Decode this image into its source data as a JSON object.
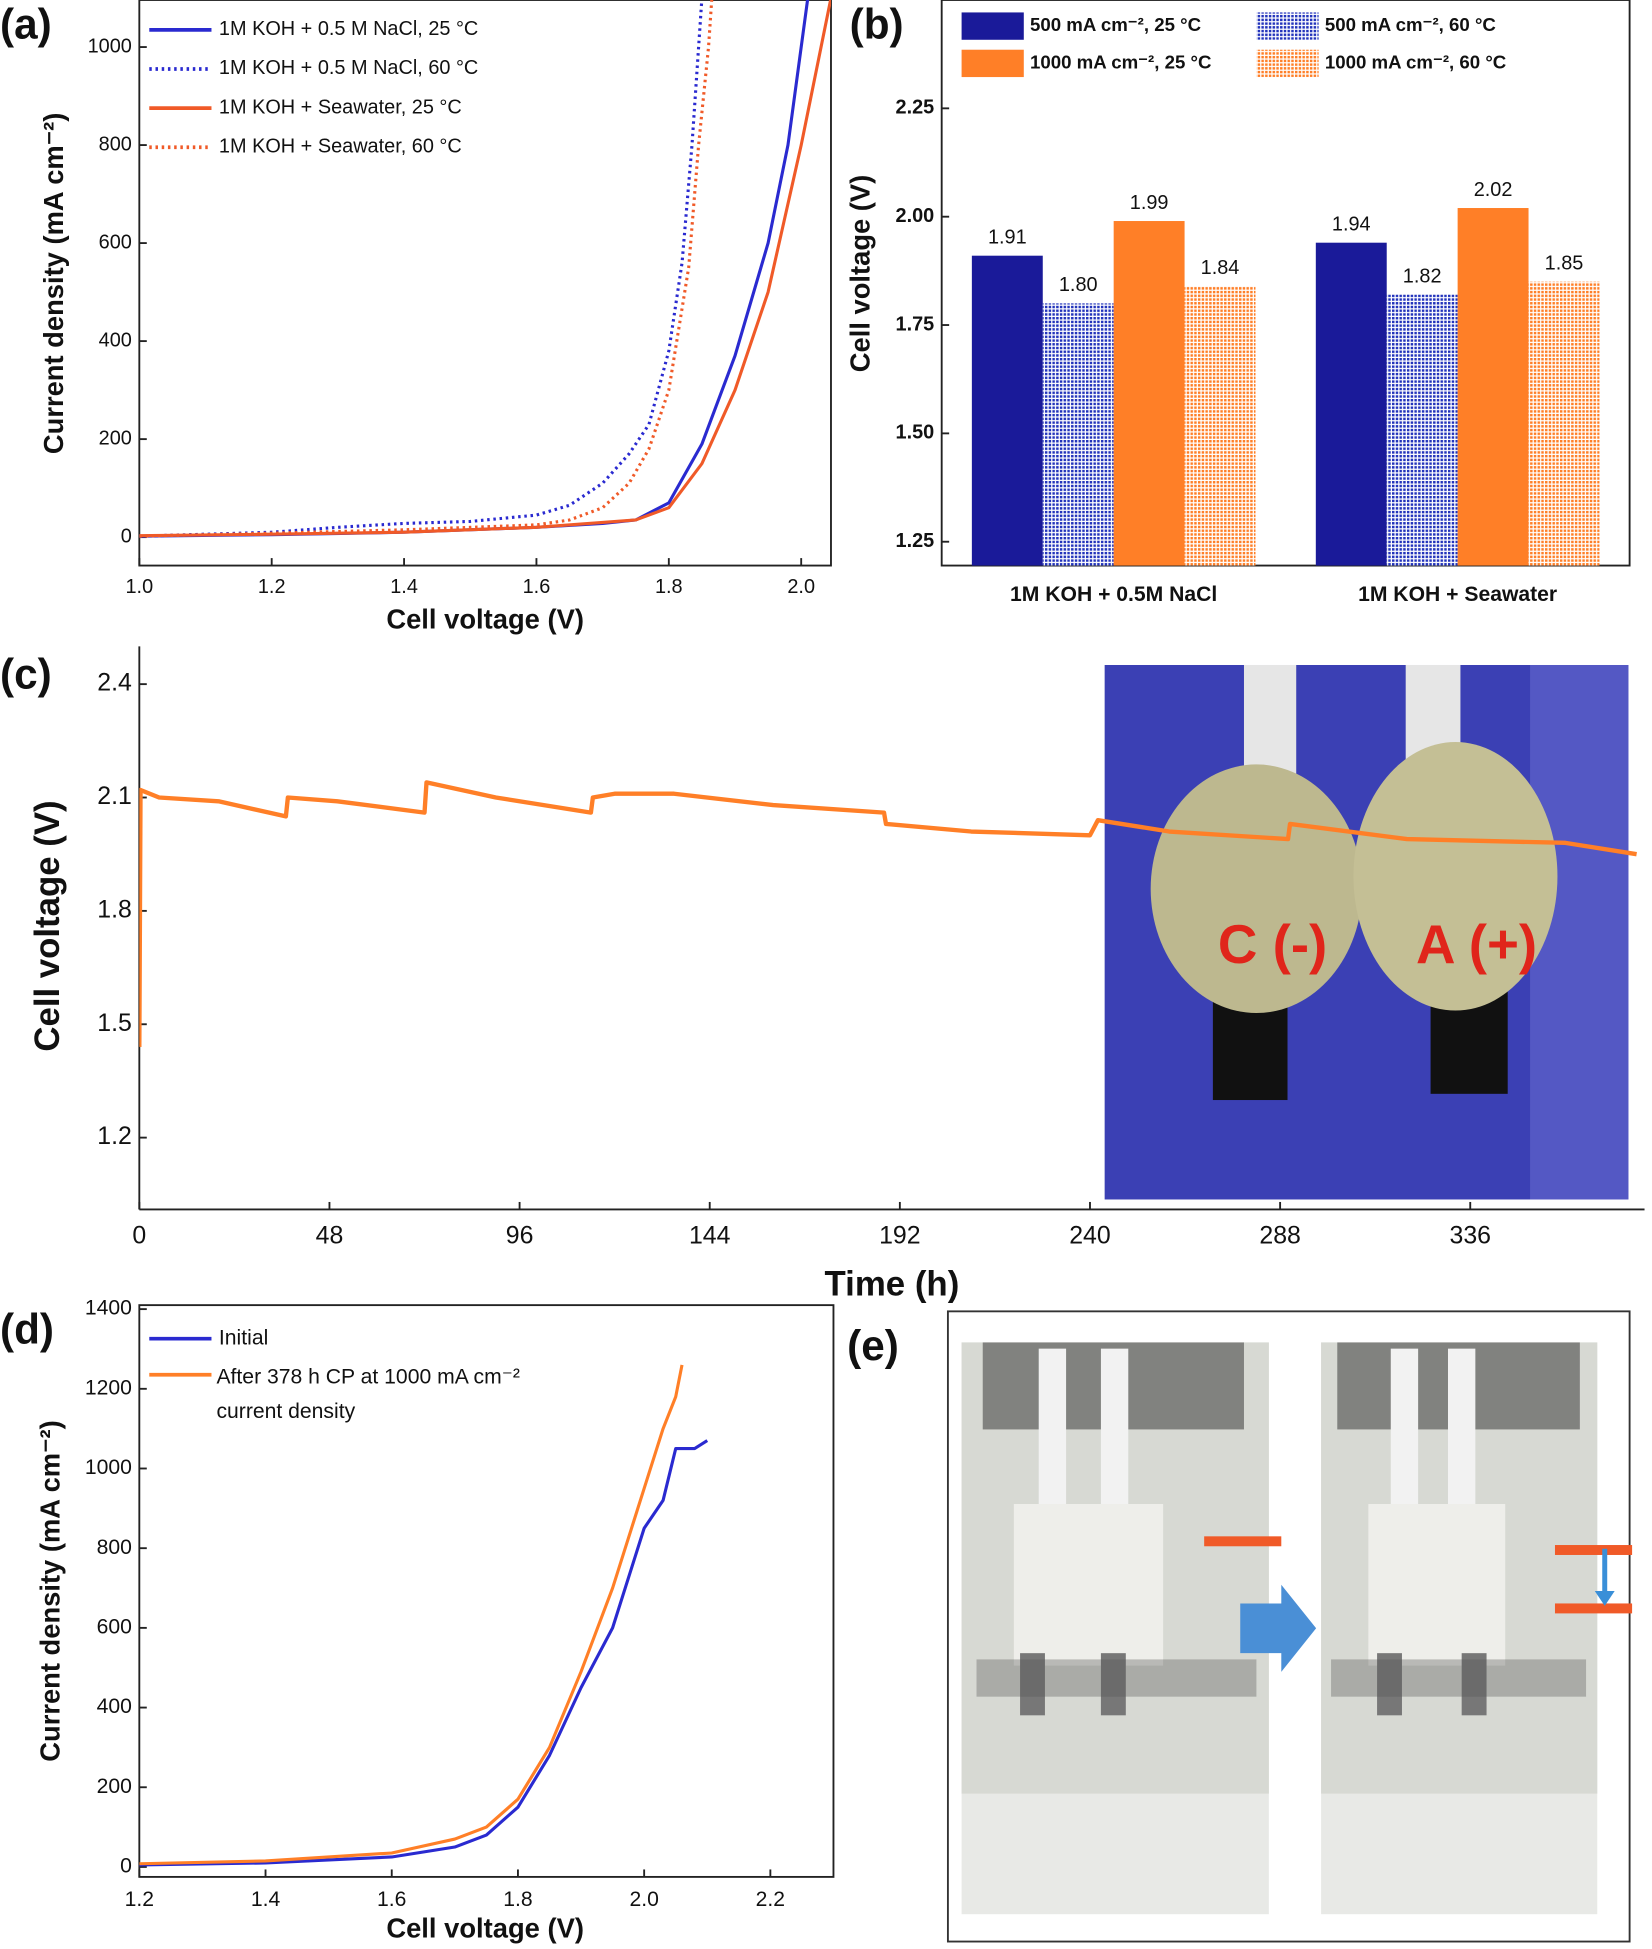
{
  "chart_data": [
    {
      "type": "line",
      "panel_label": "(a)",
      "xlabel": "Cell voltage (V)",
      "ylabel": "Current density (mA cm⁻²)",
      "xlim": [
        1.0,
        2.045
      ],
      "ylim": [
        -58,
        1096
      ],
      "xticks": [
        {
          "value": 1.0,
          "label": "1.0"
        },
        1.2,
        1.4,
        1.6,
        1.8,
        {
          "value": 2.0,
          "label": "2.0"
        }
      ],
      "yticks": [
        0,
        200,
        400,
        600,
        800,
        1000
      ],
      "legend": "upper left",
      "series": [
        {
          "name": "1M KOH + 0.5 M NaCl, 25 °C",
          "color": "#2a2ad0",
          "dash": "solid",
          "x": [
            1.0,
            1.2,
            1.4,
            1.6,
            1.7,
            1.75,
            1.8,
            1.85,
            1.9,
            1.95,
            1.98,
            2.0,
            2.01
          ],
          "values": [
            2,
            5,
            10,
            20,
            28,
            35,
            70,
            190,
            370,
            600,
            800,
            1000,
            1100
          ]
        },
        {
          "name": "1M KOH + 0.5 M NaCl, 60 °C",
          "color": "#2a2ad0",
          "dash": "dotted",
          "x": [
            1.0,
            1.2,
            1.3,
            1.4,
            1.5,
            1.6,
            1.65,
            1.7,
            1.74,
            1.77,
            1.8,
            1.82,
            1.835,
            1.845,
            1.85
          ],
          "values": [
            2,
            10,
            20,
            28,
            32,
            45,
            65,
            110,
            170,
            230,
            380,
            560,
            800,
            1000,
            1100
          ]
        },
        {
          "name": "1M KOH + Seawater, 25 °C",
          "color": "#f05a28",
          "dash": "solid",
          "x": [
            1.0,
            1.2,
            1.4,
            1.6,
            1.7,
            1.75,
            1.8,
            1.85,
            1.9,
            1.95,
            2.0,
            2.03,
            2.045
          ],
          "values": [
            3,
            6,
            10,
            20,
            30,
            35,
            60,
            150,
            300,
            500,
            800,
            1000,
            1100
          ]
        },
        {
          "name": "1M KOH + Seawater, 60 °C",
          "color": "#f05a28",
          "dash": "dotted",
          "x": [
            1.0,
            1.2,
            1.4,
            1.5,
            1.6,
            1.65,
            1.7,
            1.74,
            1.77,
            1.8,
            1.83,
            1.845,
            1.86,
            1.865
          ],
          "values": [
            2,
            8,
            15,
            20,
            25,
            35,
            60,
            110,
            180,
            300,
            550,
            800,
            1000,
            1100
          ]
        }
      ]
    },
    {
      "type": "bar",
      "panel_label": "(b)",
      "ylabel": "Cell voltage (V)",
      "categories": [
        "1M KOH + 0.5M NaCl",
        "1M KOH + Seawater"
      ],
      "ylim": [
        1.195,
        2.5
      ],
      "yticks": [
        1.25,
        {
          "value": 1.5,
          "label": "1.50"
        },
        1.75,
        {
          "value": 2.0,
          "label": "2.00"
        },
        2.25
      ],
      "legend": "top",
      "series": [
        {
          "name": "500 mA cm⁻², 25 °C",
          "color": "#1a1a99",
          "pattern": "solid",
          "values": [
            1.91,
            1.94
          ]
        },
        {
          "name": "500 mA cm⁻², 60 °C",
          "color": "#2233bb",
          "pattern": "dotted",
          "values": [
            1.8,
            1.82
          ],
          "value_labels": [
            "1.80",
            "1.82"
          ]
        },
        {
          "name": "1000 mA cm⁻², 25 °C",
          "color": "#ff7f27",
          "pattern": "solid",
          "values": [
            1.99,
            2.02
          ]
        },
        {
          "name": "1000 mA cm⁻², 60 °C",
          "color": "#ff7f27",
          "pattern": "dotted",
          "values": [
            1.84,
            1.85
          ]
        }
      ]
    },
    {
      "type": "line",
      "panel_label": "(c)",
      "xlabel": "Time (h)",
      "ylabel": "Cell voltage (V)",
      "xlim": [
        0,
        380
      ],
      "ylim": [
        1.01,
        2.5
      ],
      "xticks": [
        0,
        48,
        96,
        144,
        192,
        240,
        288,
        336
      ],
      "yticks": [
        1.2,
        1.5,
        1.8,
        2.1,
        2.4
      ],
      "inset_labels": [
        "C (-)",
        "A (+)"
      ],
      "series": [
        {
          "color": "#ff7f27",
          "dash": "solid",
          "x": [
            0,
            0.3,
            5,
            20,
            37,
            37.5,
            50,
            72,
            72.5,
            90,
            114,
            114.5,
            120,
            135,
            160,
            188,
            188.5,
            210,
            240,
            242,
            260,
            290,
            290.5,
            320,
            360,
            378
          ],
          "values": [
            1.44,
            2.12,
            2.1,
            2.09,
            2.05,
            2.1,
            2.09,
            2.06,
            2.14,
            2.1,
            2.06,
            2.1,
            2.11,
            2.11,
            2.08,
            2.06,
            2.03,
            2.01,
            2.0,
            2.04,
            2.01,
            1.99,
            2.03,
            1.99,
            1.98,
            1.95
          ]
        }
      ]
    },
    {
      "type": "line",
      "panel_label": "(d)",
      "xlabel": "Cell voltage (V)",
      "ylabel": "Current density (mA cm⁻²)",
      "xlim": [
        1.2,
        2.3
      ],
      "ylim": [
        -25,
        1410
      ],
      "xticks": [
        1.2,
        1.4,
        1.6,
        1.8,
        {
          "value": 2.0,
          "label": "2.0"
        },
        2.2
      ],
      "yticks": [
        0,
        200,
        400,
        600,
        800,
        1000,
        1200,
        1400
      ],
      "legend": "upper left",
      "series": [
        {
          "name": "Initial",
          "color": "#2a2ad0",
          "dash": "solid",
          "x": [
            1.2,
            1.4,
            1.6,
            1.7,
            1.75,
            1.8,
            1.85,
            1.9,
            1.95,
            2.0,
            2.03,
            2.05,
            2.08,
            2.1
          ],
          "values": [
            5,
            10,
            25,
            50,
            80,
            150,
            280,
            450,
            600,
            850,
            920,
            1050,
            1050,
            1070
          ]
        },
        {
          "name": "After 378 h CP at 1000 mA cm⁻² current density",
          "color": "#ff7f27",
          "dash": "solid",
          "x": [
            1.2,
            1.4,
            1.6,
            1.7,
            1.75,
            1.8,
            1.85,
            1.9,
            1.95,
            2.0,
            2.03,
            2.05,
            2.06
          ],
          "values": [
            8,
            15,
            35,
            70,
            100,
            170,
            300,
            490,
            700,
            950,
            1100,
            1180,
            1260
          ]
        }
      ]
    }
  ],
  "panel_e": {
    "panel_label": "(e)"
  }
}
